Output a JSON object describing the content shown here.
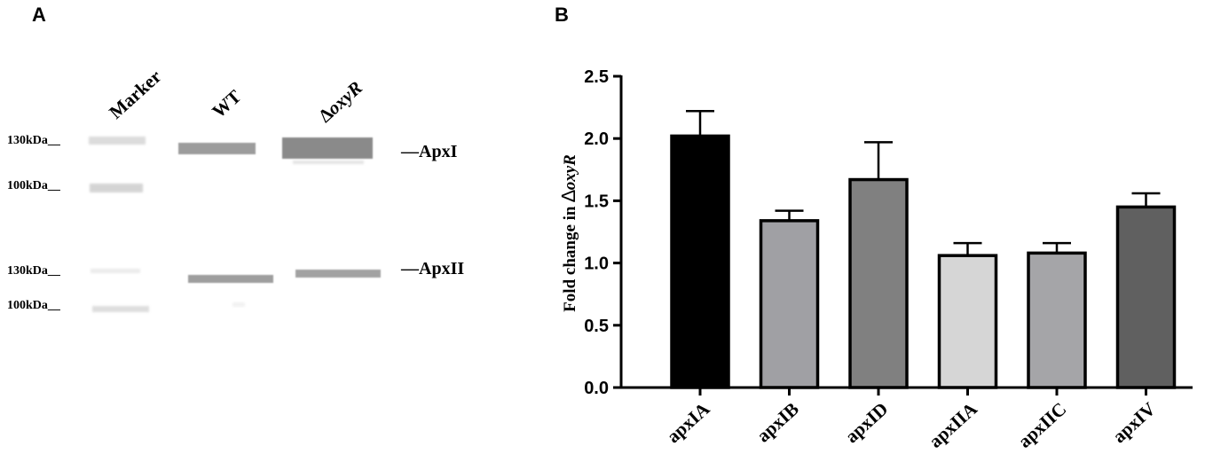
{
  "panel_a": {
    "letter": "A",
    "lanes": [
      {
        "prefix": "",
        "name": "Marker"
      },
      {
        "prefix": "",
        "name": "WT"
      },
      {
        "prefix": "∆",
        "name": "oxyR"
      }
    ],
    "size_labels": [
      "130kDa__",
      "100kDa__",
      "130kDa__",
      "100kDa__"
    ],
    "band_labels": [
      "—ApxI",
      "—ApxII"
    ]
  },
  "panel_b": {
    "letter": "B"
  },
  "chart_data": {
    "type": "bar",
    "categories": [
      "apxIA",
      "apxIB",
      "apxID",
      "apxIIA",
      "apxIIC",
      "apxIV"
    ],
    "values": [
      2.02,
      1.34,
      1.67,
      1.06,
      1.08,
      1.45
    ],
    "errors": [
      0.2,
      0.08,
      0.3,
      0.1,
      0.08,
      0.11
    ],
    "colors": [
      "#000000",
      "#a0a0a4",
      "#808080",
      "#d6d6d6",
      "#a5a5a8",
      "#606060"
    ],
    "ylabel_prefix": "Fold change in ",
    "ylabel_symbol": "∆",
    "ylabel_gene": "oxyR",
    "yticks": [
      "0.0",
      "0.5",
      "1.0",
      "1.5",
      "2.0",
      "2.5"
    ],
    "ylim": [
      0,
      2.5
    ],
    "grid": false,
    "legend": "none"
  }
}
